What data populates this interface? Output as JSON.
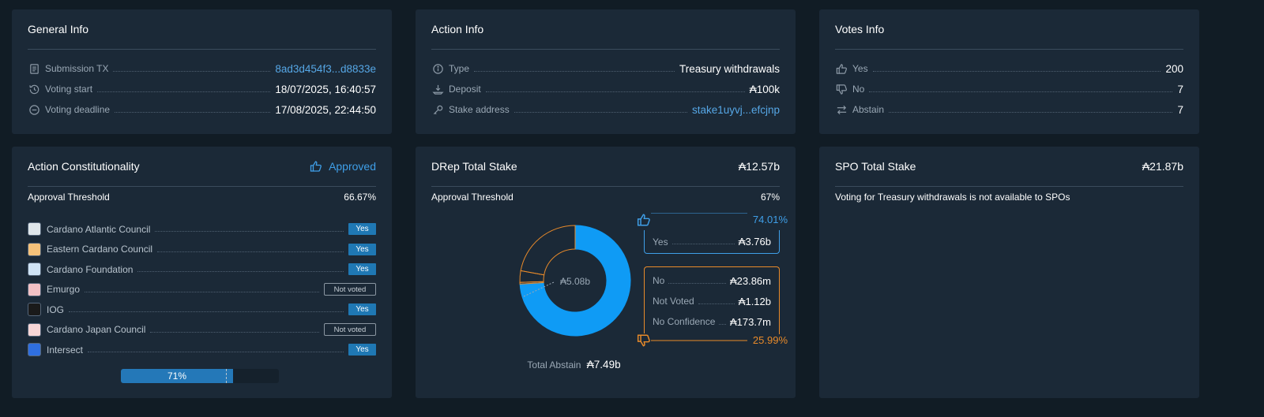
{
  "general_info": {
    "title": "General Info",
    "rows": [
      {
        "icon": "receipt-icon",
        "label": "Submission TX",
        "value": "8ad3d454f3...d8833e"
      },
      {
        "icon": "history-icon",
        "label": "Voting start",
        "value": "18/07/2025, 16:40:57"
      },
      {
        "icon": "minus-circle-icon",
        "label": "Voting deadline",
        "value": "17/08/2025, 22:44:50"
      }
    ]
  },
  "action_info": {
    "title": "Action Info",
    "rows": [
      {
        "icon": "info-icon",
        "label": "Type",
        "value": "Treasury withdrawals"
      },
      {
        "icon": "deposit-icon",
        "label": "Deposit",
        "value": "₳100k"
      },
      {
        "icon": "key-icon",
        "label": "Stake address",
        "value": "stake1uyvj...efcjnp"
      }
    ]
  },
  "votes_info": {
    "title": "Votes Info",
    "rows": [
      {
        "icon": "thumbs-up-icon",
        "label": "Yes",
        "value": "200"
      },
      {
        "icon": "thumbs-down-icon",
        "label": "No",
        "value": "7"
      },
      {
        "icon": "swap-icon",
        "label": "Abstain",
        "value": "7"
      }
    ]
  },
  "constitutionality": {
    "title": "Action Constitutionality",
    "status": "Approved",
    "threshold_label": "Approval Threshold",
    "threshold_value": "66.67%",
    "members": [
      {
        "name": "Cardano Atlantic Council",
        "vote": "Yes",
        "color": "#dfe6ea"
      },
      {
        "name": "Eastern Cardano Council",
        "vote": "Yes",
        "color": "#f5c27a"
      },
      {
        "name": "Cardano Foundation",
        "vote": "Yes",
        "color": "#cfe3f5"
      },
      {
        "name": "Emurgo",
        "vote": "Not voted",
        "color": "#f2c1c5"
      },
      {
        "name": "IOG",
        "vote": "Yes",
        "color": "#1a1a1a"
      },
      {
        "name": "Cardano Japan Council",
        "vote": "Not voted",
        "color": "#f7d6d6"
      },
      {
        "name": "Intersect",
        "vote": "Yes",
        "color": "#2f6fe0"
      }
    ],
    "progress": {
      "percent": 71,
      "label": "71%",
      "threshold_percent": 66.67
    }
  },
  "drep": {
    "title": "DRep Total Stake",
    "total": "₳12.57b",
    "threshold_label": "Approval Threshold",
    "threshold_value": "67%",
    "donut_center": "₳5.08b",
    "yes_percent": "74.01%",
    "yes_label": "Yes",
    "yes_value": "₳3.76b",
    "no_rows": [
      {
        "label": "No",
        "value": "₳23.86m"
      },
      {
        "label": "Not Voted",
        "value": "₳1.12b"
      },
      {
        "label": "No Confidence",
        "value": "₳173.7m"
      }
    ],
    "no_percent": "25.99%",
    "abstain_label": "Total Abstain",
    "abstain_value": "₳7.49b",
    "slices": [
      74.01,
      0.47,
      3.4,
      22.12
    ],
    "colors": {
      "yes": "#0f9bf5",
      "no": "#e88a2a"
    }
  },
  "spo": {
    "title": "SPO Total Stake",
    "total": "₳21.87b",
    "note": "Voting for Treasury withdrawals is not available to SPOs"
  }
}
